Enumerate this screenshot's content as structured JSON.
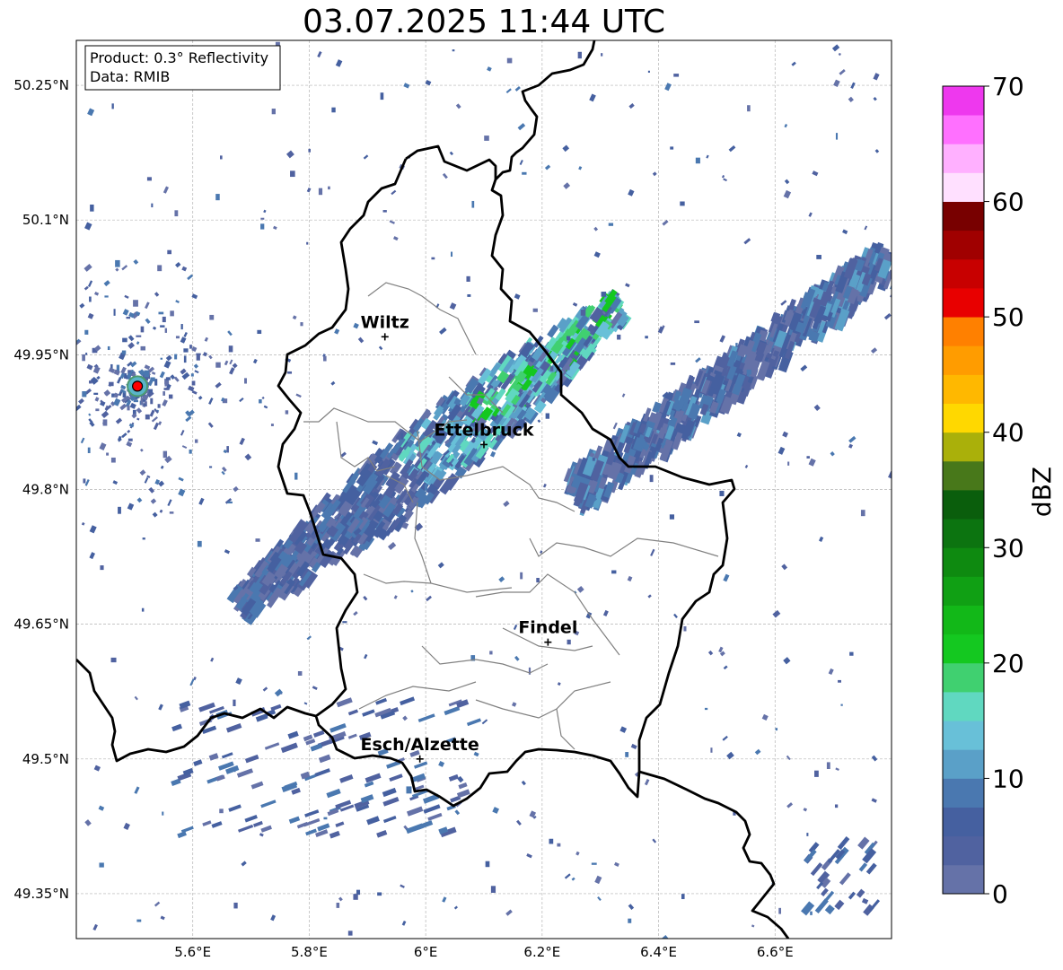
{
  "title": "03.07.2025 11:44 UTC",
  "info_box": {
    "product": "Product: 0.3° Reflectivity",
    "data_source": "Data: RMIB"
  },
  "map": {
    "lon_range": [
      5.4,
      6.8
    ],
    "lat_range": [
      49.3,
      50.3
    ],
    "lon_ticks": [
      {
        "value": 5.6,
        "label": "5.6°E"
      },
      {
        "value": 5.8,
        "label": "5.8°E"
      },
      {
        "value": 6.0,
        "label": "6°E"
      },
      {
        "value": 6.2,
        "label": "6.2°E"
      },
      {
        "value": 6.4,
        "label": "6.4°E"
      },
      {
        "value": 6.6,
        "label": "6.6°E"
      }
    ],
    "lat_ticks": [
      {
        "value": 50.25,
        "label": "50.25°N"
      },
      {
        "value": 50.1,
        "label": "50.1°N"
      },
      {
        "value": 49.95,
        "label": "49.95°N"
      },
      {
        "value": 49.8,
        "label": "49.8°N"
      },
      {
        "value": 49.65,
        "label": "49.65°N"
      },
      {
        "value": 49.5,
        "label": "49.5°N"
      },
      {
        "value": 49.35,
        "label": "49.35°N"
      }
    ],
    "gridlines": true,
    "cities": [
      {
        "name": "Wiltz",
        "lon": 5.93,
        "lat": 49.97
      },
      {
        "name": "Ettelbruck",
        "lon": 6.1,
        "lat": 49.85
      },
      {
        "name": "Findel",
        "lon": 6.21,
        "lat": 49.63
      },
      {
        "name": "Esch/Alzette",
        "lon": 5.99,
        "lat": 49.5
      }
    ],
    "radar_site": {
      "lon": 5.505,
      "lat": 49.915,
      "color": "#ff0000"
    }
  },
  "colorbar": {
    "label": "dBZ",
    "min": 0,
    "max": 70,
    "ticks": [
      {
        "value": 0,
        "label": "0"
      },
      {
        "value": 10,
        "label": "10"
      },
      {
        "value": 20,
        "label": "20"
      },
      {
        "value": 30,
        "label": "30"
      },
      {
        "value": 40,
        "label": "40"
      },
      {
        "value": 50,
        "label": "50"
      },
      {
        "value": 60,
        "label": "60"
      },
      {
        "value": 70,
        "label": "70"
      }
    ],
    "colors": [
      "#6572a8",
      "#5062a0",
      "#4560a0",
      "#4a78b0",
      "#5aa0c8",
      "#68c0d8",
      "#60d8c0",
      "#40d070",
      "#14c820",
      "#12b818",
      "#10a014",
      "#0e8a10",
      "#0c7410",
      "#0a5e0c",
      "#48781a",
      "#aab00a",
      "#ffd800",
      "#ffb800",
      "#ff9c00",
      "#ff8000",
      "#e80000",
      "#c80000",
      "#a00000",
      "#780000",
      "#ffe0ff",
      "#ffb0ff",
      "#ff70ff",
      "#ee38ee"
    ]
  }
}
